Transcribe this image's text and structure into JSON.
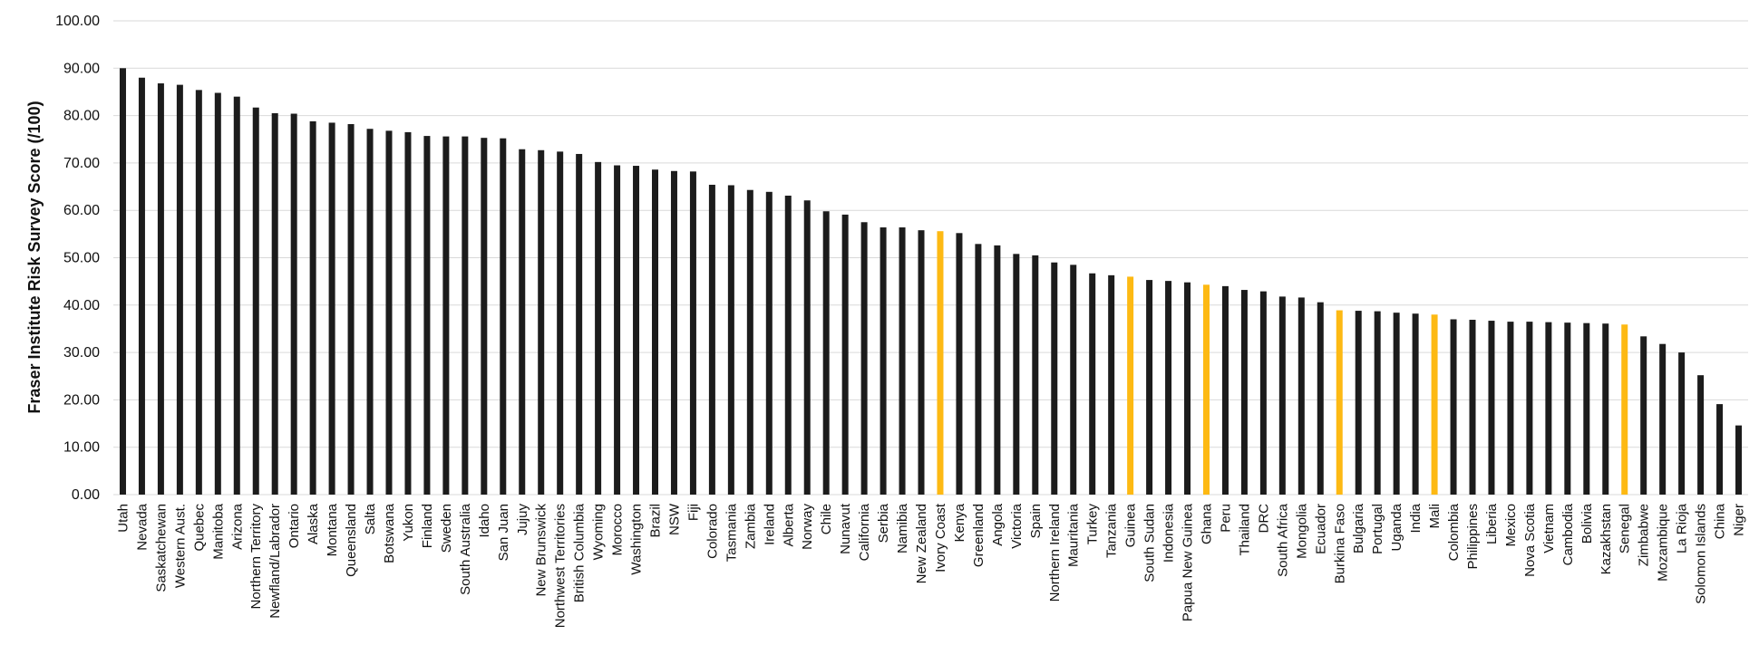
{
  "chart_data": {
    "type": "bar",
    "title": "",
    "xlabel": "",
    "ylabel": "Fraser Institute Risk Survey Score (/100)",
    "ylim": [
      0,
      100
    ],
    "yticks": [
      "0.00",
      "10.00",
      "20.00",
      "30.00",
      "40.00",
      "50.00",
      "60.00",
      "70.00",
      "80.00",
      "90.00",
      "100.00"
    ],
    "grid": true,
    "legend": "none",
    "colors": {
      "default": "#1c1c1c",
      "highlight": "#fdb913",
      "grid": "#d9d9d9"
    },
    "categories": [
      "Utah",
      "Nevada",
      "Saskatchewan",
      "Western Aust.",
      "Quebec",
      "Manitoba",
      "Arizona",
      "Northern Territory",
      "Newfland/Labrador",
      "Ontario",
      "Alaska",
      "Montana",
      "Queensland",
      "Salta",
      "Botswana",
      "Yukon",
      "Finland",
      "Sweden",
      "South Australia",
      "Idaho",
      "San Juan",
      "Jujuy",
      "New Brunswick",
      "Northwest Territories",
      "British Columbia",
      "Wyoming",
      "Morocco",
      "Washington",
      "Brazil",
      "NSW",
      "Fiji",
      "Colorado",
      "Tasmania",
      "Zambia",
      "Ireland",
      "Alberta",
      "Norway",
      "Chile",
      "Nunavut",
      "California",
      "Serbia",
      "Namibia",
      "New Zealand",
      "Ivory Coast",
      "Kenya",
      "Greenland",
      "Angola",
      "Victoria",
      "Spain",
      "Northern Ireland",
      "Mauritania",
      "Turkey",
      "Tanzania",
      "Guinea",
      "South Sudan",
      "Indonesia",
      "Papua New Guinea",
      "Ghana",
      "Peru",
      "Thailand",
      "DRC",
      "South Africa",
      "Mongolia",
      "Ecuador",
      "Burkina Faso",
      "Bulgaria",
      "Portugal",
      "Uganda",
      "India",
      "Mali",
      "Colombia",
      "Philippines",
      "Liberia",
      "Mexico",
      "Nova Scotia",
      "Vietnam",
      "Cambodia",
      "Bolivia",
      "Kazakhstan",
      "Senegal",
      "Zimbabwe",
      "Mozambique",
      "La Rioja",
      "Solomon Islands",
      "China",
      "Niger"
    ],
    "values": [
      90.0,
      88.0,
      86.8,
      86.5,
      85.4,
      84.8,
      84.0,
      81.7,
      80.5,
      80.4,
      78.8,
      78.5,
      78.2,
      77.2,
      76.8,
      76.5,
      75.7,
      75.6,
      75.6,
      75.3,
      75.2,
      72.9,
      72.7,
      72.4,
      71.9,
      70.2,
      69.5,
      69.4,
      68.6,
      68.3,
      68.2,
      65.4,
      65.3,
      64.3,
      63.9,
      63.1,
      62.1,
      59.8,
      59.1,
      57.5,
      56.4,
      56.4,
      55.8,
      55.6,
      55.2,
      52.9,
      52.6,
      50.8,
      50.5,
      49.0,
      48.5,
      46.7,
      46.3,
      46.0,
      45.3,
      45.1,
      44.8,
      44.3,
      44.0,
      43.2,
      42.9,
      41.8,
      41.6,
      40.6,
      38.9,
      38.8,
      38.7,
      38.4,
      38.2,
      38.0,
      37.0,
      36.9,
      36.7,
      36.5,
      36.5,
      36.4,
      36.3,
      36.2,
      36.1,
      35.9,
      33.4,
      31.8,
      30.0,
      25.2,
      19.1,
      14.6
    ],
    "highlighted": [
      "Ivory Coast",
      "Guinea",
      "Ghana",
      "Burkina Faso",
      "Mali",
      "Senegal"
    ]
  }
}
